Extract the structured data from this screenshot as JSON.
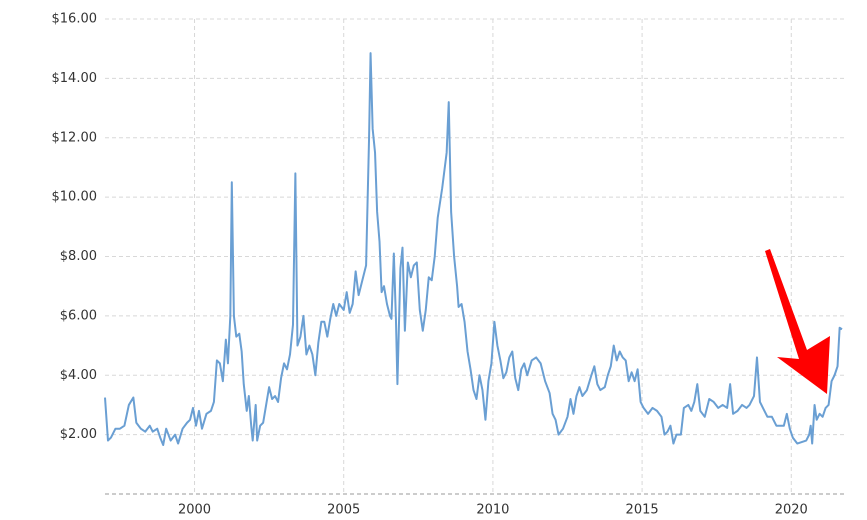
{
  "chart_data": {
    "type": "line",
    "color": "#6a9fd3",
    "grid": true,
    "xlim": [
      1997,
      2021.8
    ],
    "ylim": [
      0,
      16
    ],
    "xticks": [
      2000,
      2005,
      2010,
      2015,
      2020
    ],
    "yticks": [
      {
        "value": 2,
        "label": "$2.00"
      },
      {
        "value": 4,
        "label": "$4.00"
      },
      {
        "value": 6,
        "label": "$6.00"
      },
      {
        "value": 8,
        "label": "$8.00"
      },
      {
        "value": 10,
        "label": "$10.00"
      },
      {
        "value": 12,
        "label": "$12.00"
      },
      {
        "value": 14,
        "label": "$14.00"
      },
      {
        "value": 16,
        "label": "$16.00"
      }
    ],
    "x": [
      1997.0,
      1997.1,
      1997.2,
      1997.35,
      1997.5,
      1997.65,
      1997.8,
      1997.95,
      1998.05,
      1998.2,
      1998.35,
      1998.5,
      1998.6,
      1998.75,
      1998.85,
      1998.95,
      1999.05,
      1999.2,
      1999.35,
      1999.45,
      1999.6,
      1999.75,
      1999.85,
      1999.95,
      2000.05,
      2000.15,
      2000.25,
      2000.4,
      2000.55,
      2000.65,
      2000.75,
      2000.85,
      2000.95,
      2001.05,
      2001.12,
      2001.2,
      2001.25,
      2001.32,
      2001.4,
      2001.5,
      2001.58,
      2001.65,
      2001.75,
      2001.82,
      2001.9,
      2001.95,
      2002.05,
      2002.1,
      2002.2,
      2002.3,
      2002.4,
      2002.5,
      2002.6,
      2002.7,
      2002.8,
      2002.9,
      2003.0,
      2003.1,
      2003.2,
      2003.3,
      2003.38,
      2003.45,
      2003.55,
      2003.65,
      2003.75,
      2003.85,
      2003.95,
      2004.05,
      2004.15,
      2004.25,
      2004.35,
      2004.45,
      2004.55,
      2004.65,
      2004.75,
      2004.85,
      2005.0,
      2005.1,
      2005.2,
      2005.3,
      2005.4,
      2005.5,
      2005.6,
      2005.75,
      2005.85,
      2005.9,
      2005.97,
      2006.05,
      2006.12,
      2006.2,
      2006.27,
      2006.35,
      2006.45,
      2006.55,
      2006.6,
      2006.68,
      2006.75,
      2006.8,
      2006.9,
      2006.97,
      2007.05,
      2007.15,
      2007.25,
      2007.35,
      2007.45,
      2007.55,
      2007.65,
      2007.75,
      2007.85,
      2007.95,
      2008.05,
      2008.15,
      2008.3,
      2008.45,
      2008.52,
      2008.6,
      2008.7,
      2008.8,
      2008.85,
      2008.95,
      2009.05,
      2009.15,
      2009.25,
      2009.35,
      2009.45,
      2009.55,
      2009.65,
      2009.75,
      2009.85,
      2009.95,
      2010.05,
      2010.15,
      2010.25,
      2010.35,
      2010.45,
      2010.55,
      2010.65,
      2010.75,
      2010.85,
      2010.95,
      2011.05,
      2011.15,
      2011.3,
      2011.45,
      2011.6,
      2011.75,
      2011.9,
      2012.0,
      2012.1,
      2012.2,
      2012.35,
      2012.5,
      2012.6,
      2012.7,
      2012.8,
      2012.9,
      2013.0,
      2013.15,
      2013.3,
      2013.4,
      2013.5,
      2013.6,
      2013.75,
      2013.85,
      2013.95,
      2014.05,
      2014.15,
      2014.25,
      2014.35,
      2014.45,
      2014.55,
      2014.65,
      2014.75,
      2014.85,
      2014.95,
      2015.05,
      2015.2,
      2015.35,
      2015.5,
      2015.65,
      2015.75,
      2015.85,
      2015.95,
      2016.05,
      2016.15,
      2016.3,
      2016.4,
      2016.55,
      2016.65,
      2016.75,
      2016.85,
      2016.95,
      2017.1,
      2017.25,
      2017.4,
      2017.55,
      2017.7,
      2017.85,
      2017.95,
      2018.05,
      2018.2,
      2018.35,
      2018.5,
      2018.6,
      2018.75,
      2018.85,
      2018.95,
      2019.05,
      2019.2,
      2019.35,
      2019.5,
      2019.6,
      2019.75,
      2019.85,
      2019.95,
      2020.05,
      2020.2,
      2020.35,
      2020.5,
      2020.6,
      2020.65,
      2020.7,
      2020.78,
      2020.85,
      2020.95,
      2021.05,
      2021.15,
      2021.25,
      2021.35,
      2021.45,
      2021.55,
      2021.62,
      2021.7
    ],
    "values": [
      3.25,
      1.8,
      1.9,
      2.2,
      2.2,
      2.3,
      3.0,
      3.25,
      2.4,
      2.2,
      2.1,
      2.3,
      2.1,
      2.2,
      1.9,
      1.65,
      2.2,
      1.8,
      2.0,
      1.7,
      2.2,
      2.4,
      2.5,
      2.9,
      2.3,
      2.8,
      2.2,
      2.7,
      2.8,
      3.1,
      4.5,
      4.4,
      3.8,
      5.2,
      4.4,
      6.0,
      10.5,
      6.0,
      5.3,
      5.4,
      4.8,
      3.7,
      2.8,
      3.3,
      2.3,
      1.8,
      3.0,
      1.8,
      2.3,
      2.4,
      3.0,
      3.6,
      3.2,
      3.3,
      3.1,
      3.9,
      4.4,
      4.2,
      4.7,
      5.7,
      10.8,
      5.0,
      5.3,
      6.0,
      4.7,
      5.0,
      4.7,
      4.0,
      5.1,
      5.8,
      5.8,
      5.3,
      5.9,
      6.4,
      6.0,
      6.4,
      6.2,
      6.8,
      6.1,
      6.4,
      7.5,
      6.7,
      7.1,
      7.7,
      12.0,
      14.85,
      12.3,
      11.5,
      9.5,
      8.5,
      6.8,
      7.0,
      6.4,
      6.0,
      5.9,
      8.1,
      5.9,
      3.7,
      7.6,
      8.3,
      5.5,
      7.8,
      7.3,
      7.7,
      7.8,
      6.2,
      5.5,
      6.2,
      7.3,
      7.2,
      8.0,
      9.3,
      10.3,
      11.5,
      13.2,
      9.5,
      8.0,
      7.0,
      6.3,
      6.4,
      5.8,
      4.8,
      4.2,
      3.5,
      3.2,
      4.0,
      3.5,
      2.5,
      3.8,
      4.4,
      5.8,
      5.0,
      4.5,
      3.9,
      4.1,
      4.6,
      4.8,
      3.9,
      3.5,
      4.2,
      4.4,
      4.0,
      4.5,
      4.6,
      4.4,
      3.8,
      3.4,
      2.7,
      2.5,
      2.0,
      2.2,
      2.6,
      3.2,
      2.7,
      3.3,
      3.6,
      3.3,
      3.5,
      4.0,
      4.3,
      3.7,
      3.5,
      3.6,
      4.0,
      4.3,
      5.0,
      4.5,
      4.8,
      4.6,
      4.5,
      3.8,
      4.1,
      3.8,
      4.2,
      3.1,
      2.9,
      2.7,
      2.9,
      2.8,
      2.6,
      2.0,
      2.1,
      2.3,
      1.7,
      2.0,
      2.0,
      2.9,
      3.0,
      2.8,
      3.1,
      3.7,
      2.8,
      2.6,
      3.2,
      3.1,
      2.9,
      3.0,
      2.9,
      3.7,
      2.7,
      2.8,
      3.0,
      2.9,
      3.0,
      3.3,
      4.6,
      3.1,
      2.9,
      2.6,
      2.6,
      2.3,
      2.3,
      2.3,
      2.7,
      2.2,
      1.9,
      1.7,
      1.75,
      1.8,
      2.0,
      2.3,
      1.7,
      3.0,
      2.5,
      2.7,
      2.6,
      2.9,
      3.0,
      3.8,
      4.0,
      4.3,
      5.6,
      5.55
    ]
  }
}
